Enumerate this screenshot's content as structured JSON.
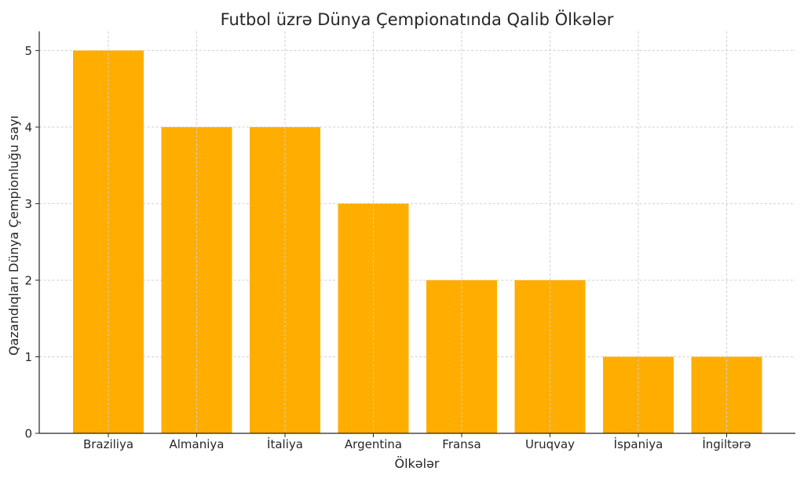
{
  "chart_data": {
    "type": "bar",
    "title": "Futbol üzrə Dünya Çempionatında Qalib Ölkələr",
    "xlabel": "Ölkələr",
    "ylabel": "Qazandıqları Dünya Çempionluğu sayı",
    "categories": [
      "Braziliya",
      "Almaniya",
      "İtaliya",
      "Argentina",
      "Fransa",
      "Uruqvay",
      "İspaniya",
      "İngiltərə"
    ],
    "values": [
      5,
      4,
      4,
      3,
      2,
      2,
      1,
      1
    ],
    "ylim": [
      0,
      5.25
    ],
    "yticks": [
      0,
      1,
      2,
      3,
      4,
      5
    ],
    "bar_color": "#FFAE00",
    "grid": true,
    "legend": "none"
  }
}
